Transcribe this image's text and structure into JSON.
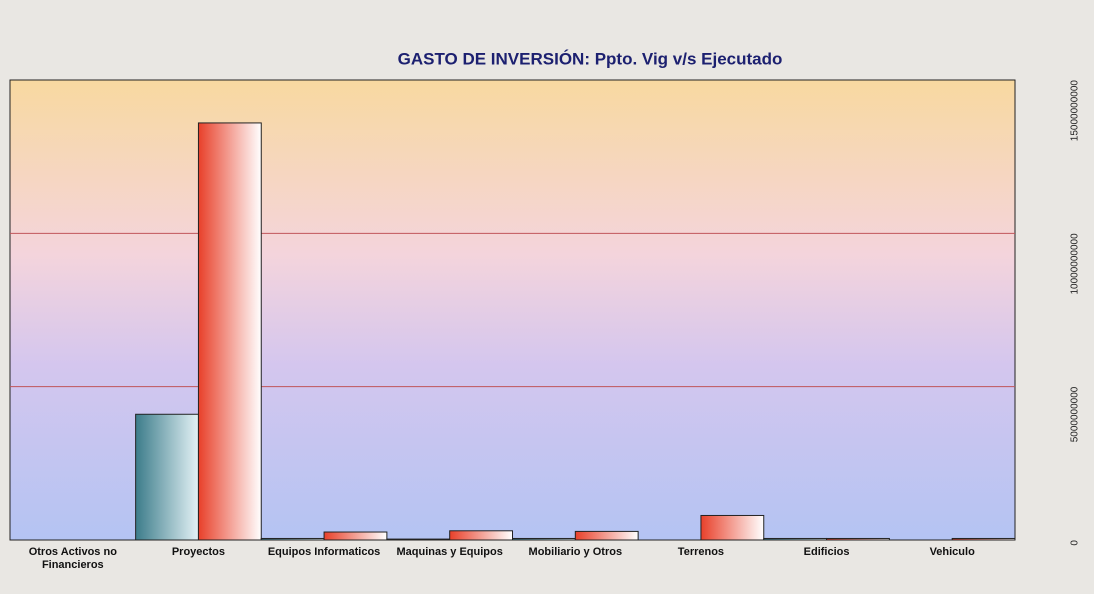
{
  "chart_data": {
    "type": "bar",
    "title": "GASTO DE INVERSIÓN: Ppto. Vig v/s Ejecutado",
    "categories": [
      "Otros Activos no Financieros",
      "Proyectos",
      "Equipos Informaticos",
      "Maquinas y Equipos",
      "Mobiliario y Otros",
      "Terrenos",
      "Edificios",
      "Vehiculo"
    ],
    "series": [
      {
        "color": "#3c7c8a",
        "values": [
          0,
          4100000000,
          50000000,
          30000000,
          50000000,
          0,
          50000000,
          0
        ]
      },
      {
        "color": "#e8402a",
        "values": [
          0,
          13600000000,
          260000000,
          300000000,
          280000000,
          800000000,
          50000000,
          50000000
        ]
      }
    ],
    "ylim": [
      0,
      15000000000
    ],
    "yticks": [
      0,
      5000000000,
      10000000000,
      15000000000
    ],
    "grid": true
  }
}
